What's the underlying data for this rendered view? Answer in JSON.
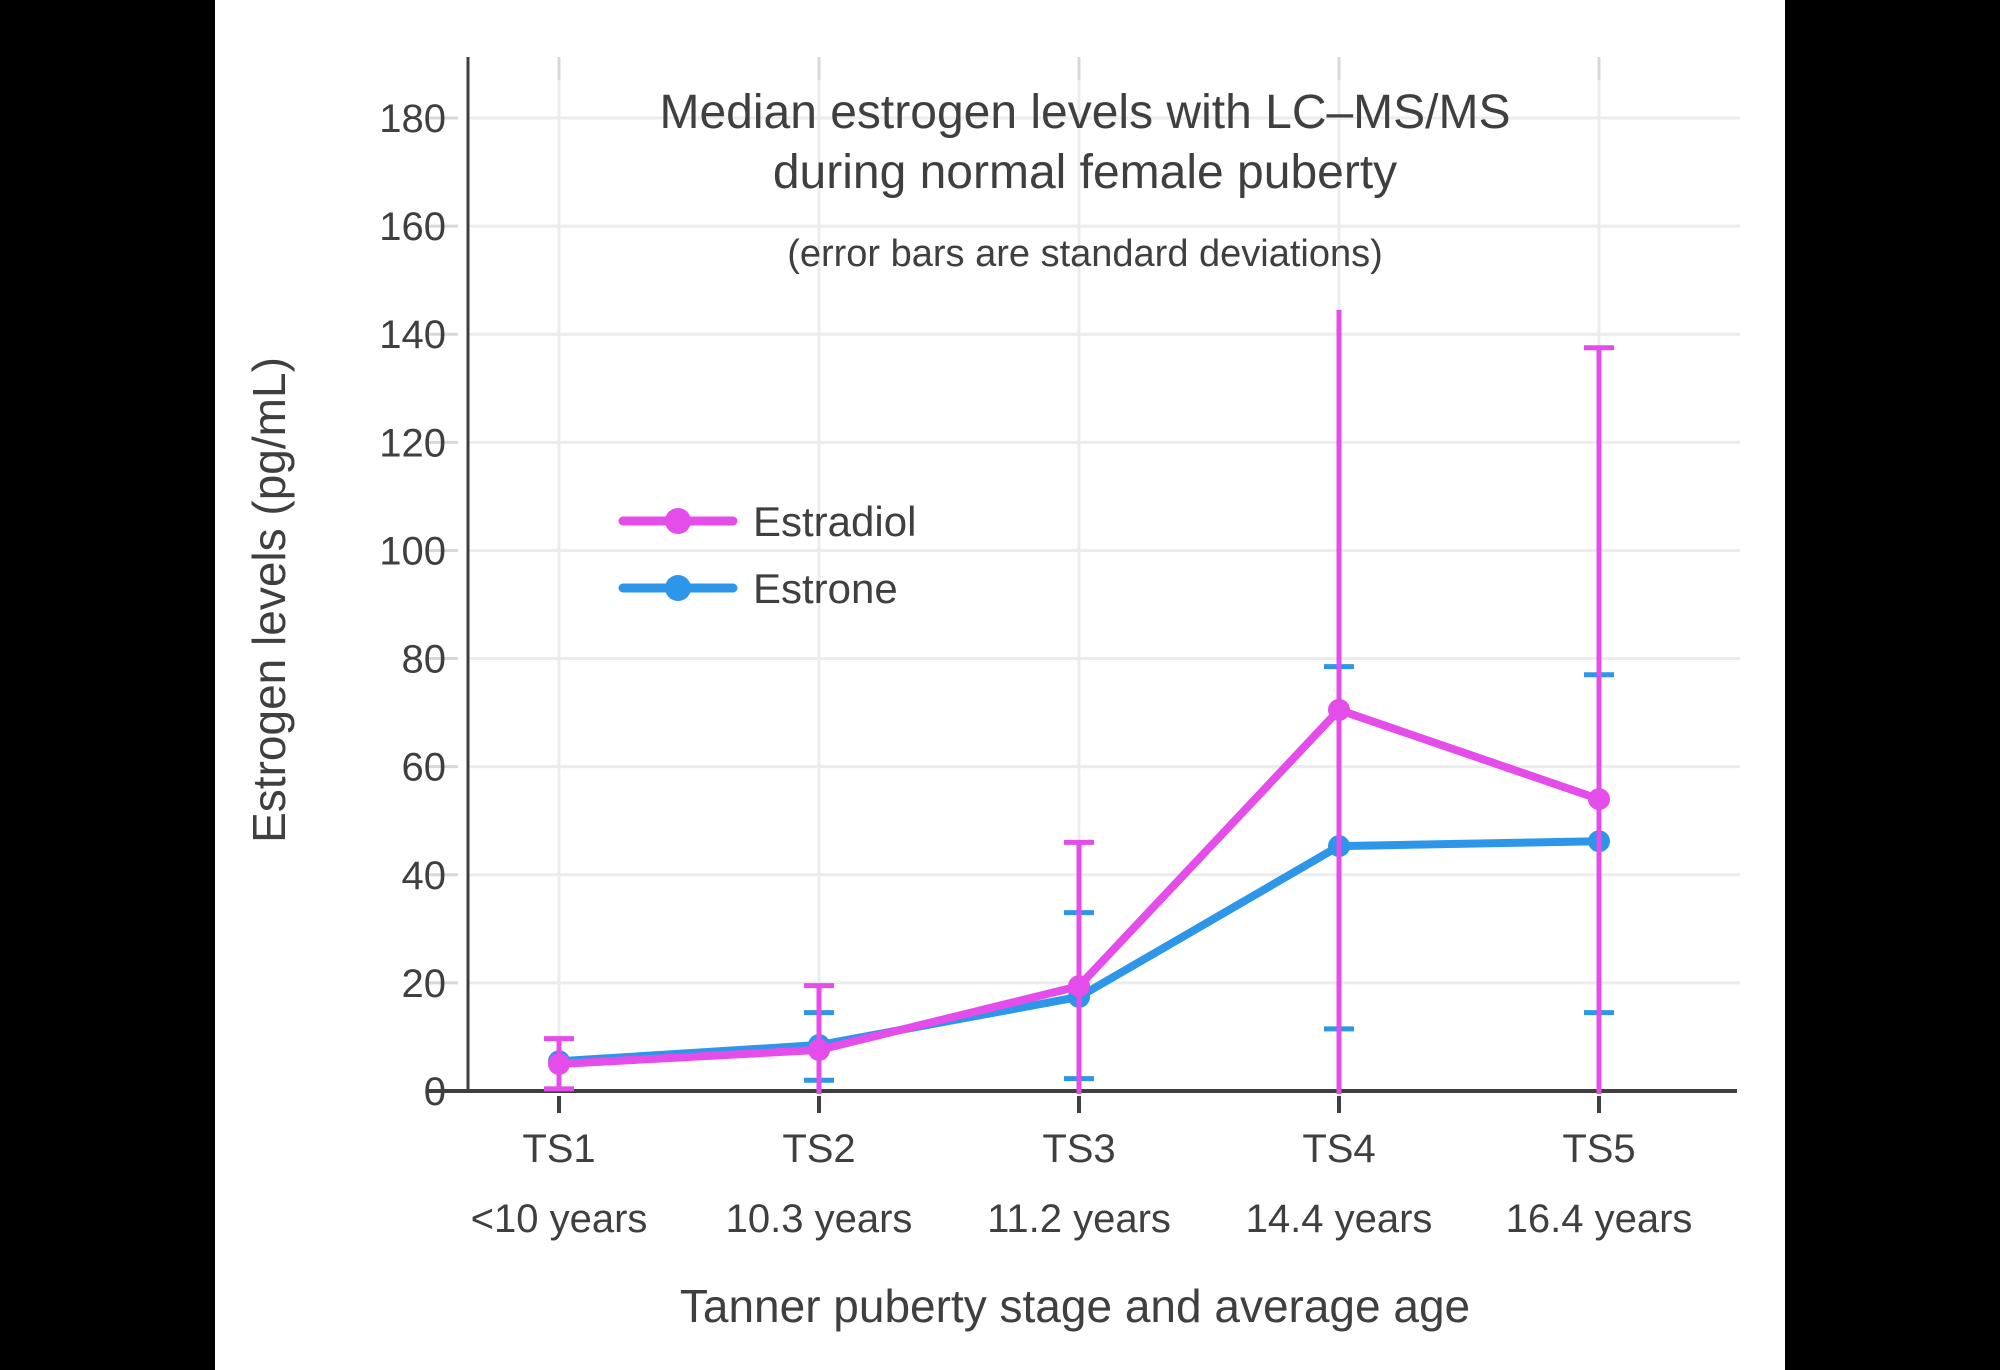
{
  "frame": {
    "side_bar_color": "#000000",
    "canvas_color": "#ffffff",
    "text_color": "#3f3f3f",
    "gridline_color": "#ececec",
    "tick_color": "#d8d8d8",
    "axis_color": "#3f3f3f"
  },
  "chart_data": {
    "type": "line",
    "title_line1": "Median estrogen levels with LC–MS/MS",
    "title_line2": "during normal female puberty",
    "subtitle": "(error bars are standard deviations)",
    "xlabel": "Tanner puberty stage and average age",
    "ylabel": "Estrogen levels (pg/mL)",
    "ylim": [
      0,
      190
    ],
    "yticks": [
      0,
      20,
      40,
      60,
      80,
      100,
      120,
      140,
      160,
      180
    ],
    "grid": true,
    "legend_position": "inside-upper-left",
    "error_bar_meaning": "standard deviations",
    "categories": [
      {
        "stage": "TS1",
        "age": "<10 years"
      },
      {
        "stage": "TS2",
        "age": "10.3 years"
      },
      {
        "stage": "TS3",
        "age": "11.2 years"
      },
      {
        "stage": "TS4",
        "age": "14.4 years"
      },
      {
        "stage": "TS5",
        "age": "16.4 years"
      }
    ],
    "series": [
      {
        "name": "Estrone",
        "color": "#2E96E8",
        "values": [
          5.5,
          8.5,
          17.4,
          45.3,
          46.2
        ],
        "error_hi": [
          null,
          14.5,
          33,
          78.5,
          77
        ],
        "error_lo": [
          null,
          2,
          2.3,
          11.5,
          14.5
        ],
        "hi_cap": [
          false,
          true,
          true,
          true,
          true
        ],
        "lo_clip": [
          false,
          false,
          false,
          false,
          false
        ]
      },
      {
        "name": "Estradiol",
        "color": "#E44DE9",
        "values": [
          5,
          7.6,
          19.4,
          70.5,
          54
        ],
        "error_hi": [
          9.7,
          19.5,
          46,
          144.5,
          137.5
        ],
        "error_lo": [
          0.4,
          null,
          null,
          null,
          null
        ],
        "hi_cap": [
          true,
          true,
          true,
          false,
          true
        ],
        "lo_clip": [
          false,
          true,
          true,
          true,
          true
        ]
      }
    ]
  },
  "legend": {
    "items": [
      {
        "label": "Estradiol",
        "color": "#E44DE9"
      },
      {
        "label": "Estrone",
        "color": "#2E96E8"
      }
    ]
  }
}
